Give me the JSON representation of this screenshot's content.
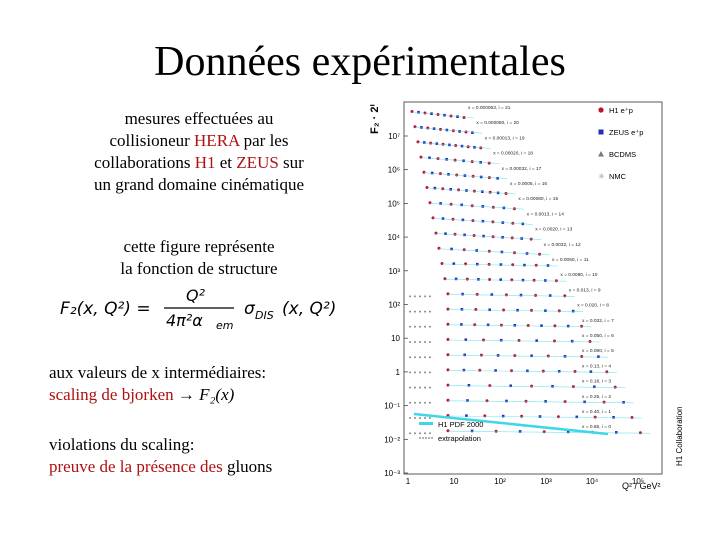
{
  "slide": {
    "title": "Données expérimentales",
    "p1": {
      "line1": "mesures effectuées au",
      "line2a": "collisioneur ",
      "line2b": "HERA",
      "line2c": " par les",
      "line3a": "collaborations ",
      "line3b": "H1",
      "line3c": " et ",
      "line3d": "ZEUS",
      "line3e": " sur",
      "line4": "un grand domaine cinématique"
    },
    "p2": {
      "line1": "cette figure représente",
      "line2": "la fonction de structure"
    },
    "formula": {
      "lhs": "F₂(x, Q²) =",
      "num": "Q²",
      "den": "4π²α",
      "den_sub": "em",
      "sigma": "σ",
      "sigma_sub": "DIS",
      "args": "(x, Q²)"
    },
    "p3": {
      "line1": "aux valeurs de x intermédiaires:",
      "line2a": "scaling de bjorken ",
      "arrow": "→",
      "line2b": " F₂(x)"
    },
    "p4": {
      "line1": "violations du scaling:",
      "line2a": "preuve de la présence des ",
      "line2b": "gluons"
    }
  },
  "figure": {
    "y_axis_label": "F₂ · 2ⁱ",
    "x_axis_label": "Q² / GeV²",
    "side_label": "H1 Collaboration",
    "y_ticks": [
      "10⁷",
      "10⁶",
      "10⁵",
      "10⁴",
      "10³",
      "10²",
      "10",
      "1",
      "10⁻¹",
      "10⁻²",
      "10⁻³"
    ],
    "x_ticks": [
      "1",
      "10",
      "10²",
      "10³",
      "10⁴",
      "10⁵"
    ],
    "legend": [
      {
        "label": "H1 e⁺p",
        "color": "#c0102a",
        "marker": "circle"
      },
      {
        "label": "ZEUS e⁺p",
        "color": "#2030b0",
        "marker": "square"
      },
      {
        "label": "BCDMS",
        "color": "#7a7a7a",
        "marker": "triangle"
      },
      {
        "label": "NMC",
        "color": "#9a9a9a",
        "marker": "star"
      }
    ],
    "bin_labels": [
      "x = 0.000063, i = 21",
      "x = 0.000080, i = 20",
      "x = 0.00013, i = 19",
      "x = 0.00020, i = 18",
      "x = 0.00032, i = 17",
      "x = 0.0005, i = 16",
      "x = 0.00080, i = 15",
      "x = 0.0013, i = 14",
      "x = 0.0020, i = 13",
      "x = 0.0032, i = 12",
      "x = 0.0050, i = 11",
      "x = 0.0080, i = 10",
      "x = 0.013, i = 9",
      "x = 0.020, i = 8",
      "x = 0.032, i = 7",
      "x = 0.050, i = 6",
      "x = 0.080, i = 5",
      "x = 0.13, i = 4",
      "x = 0.18, i = 3",
      "x = 0.25, i = 2",
      "x = 0.40, i = 1",
      "x = 0.65, i = 0"
    ],
    "inner_legend": {
      "fit": "H1 PDF 2000",
      "extrap": "extrapolation"
    },
    "colors": {
      "h1": "#c0102a",
      "zeus": "#2030b0",
      "fit": "#3fd6e8",
      "fixed_target": "#8a8a8a"
    }
  }
}
